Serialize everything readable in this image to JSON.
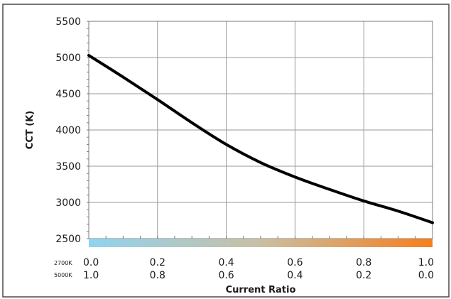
{
  "chart_data": {
    "type": "line",
    "title": "",
    "xlabel": "Current Ratio",
    "ylabel": "CCT (K)",
    "xlim": [
      0,
      1
    ],
    "ylim": [
      2500,
      5500
    ],
    "grid": true,
    "legend": "none",
    "y_ticks": [
      "5500",
      "5000",
      "4500",
      "4000",
      "3500",
      "3000",
      "2500"
    ],
    "x_ticks_top": [
      "0.0",
      "0.2",
      "0.4",
      "0.6",
      "0.8",
      "1.0"
    ],
    "x_ticks_bottom": [
      "1.0",
      "0.8",
      "0.6",
      "0.4",
      "0.2",
      "0.0"
    ],
    "row_label_top": "2700K",
    "row_label_bottom": "5000K",
    "series": [
      {
        "color": "#000000",
        "x": [
          0.0,
          0.1,
          0.2,
          0.3,
          0.4,
          0.5,
          0.6,
          0.7,
          0.8,
          0.9,
          1.0
        ],
        "y": [
          5030,
          4730,
          4420,
          4100,
          3800,
          3550,
          3350,
          3180,
          3020,
          2880,
          2720
        ]
      }
    ],
    "gradient_colors": [
      "#8fd3f0",
      "#c9bfa3",
      "#f57f1e"
    ]
  }
}
